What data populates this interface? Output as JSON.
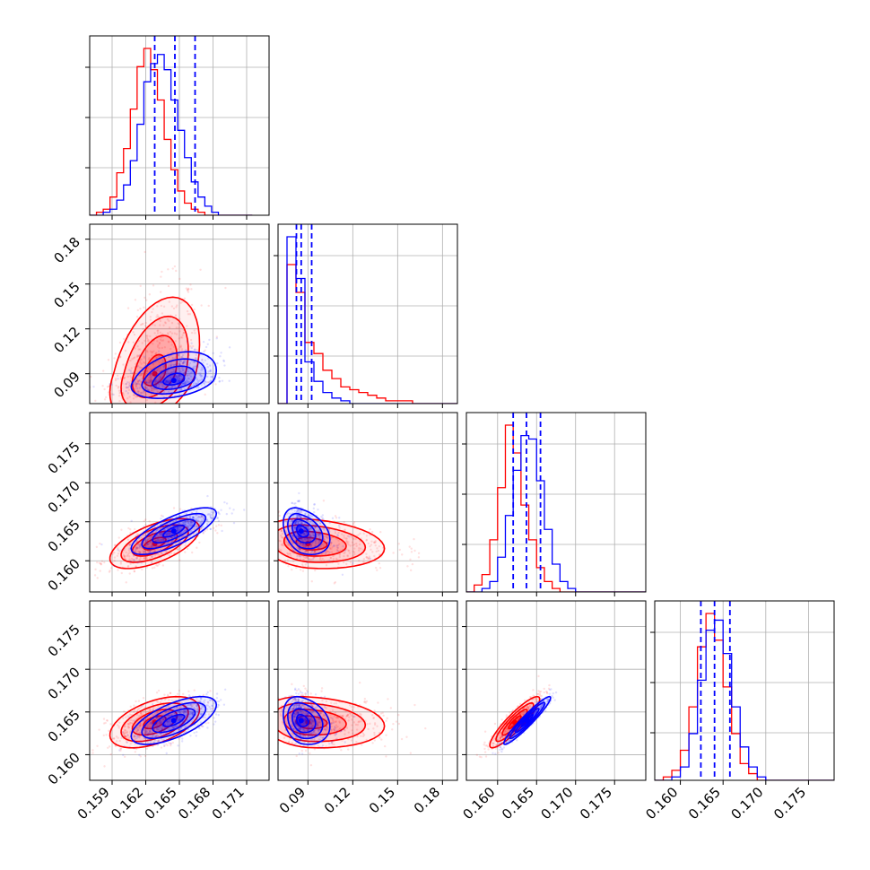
{
  "chart_data": {
    "type": "corner",
    "grid": true,
    "colors": {
      "red": "#ff0000",
      "blue": "#0000ff"
    },
    "series": [
      {
        "color": "#0000ff",
        "mean": [
          0.1645,
          0.0855,
          0.1638,
          0.164
        ],
        "sd": [
          0.0019,
          0.006,
          0.0015,
          0.0014
        ],
        "corr": [
          [
            1,
            0.35,
            0.75,
            0.65
          ],
          [
            0.35,
            1,
            -0.35,
            -0.25
          ],
          [
            0.75,
            -0.35,
            1,
            0.95
          ],
          [
            0.65,
            -0.25,
            0.95,
            1
          ]
        ]
      },
      {
        "color": "#ff0000",
        "mean": [
          0.1628,
          0.09,
          0.1622,
          0.1638
        ],
        "sd": [
          0.002,
          0.016,
          0.0016,
          0.0015
        ],
        "corr": [
          [
            1,
            0.4,
            0.6,
            0.5
          ],
          [
            0.4,
            1,
            -0.2,
            -0.15
          ],
          [
            0.6,
            -0.2,
            1,
            0.9
          ],
          [
            0.5,
            -0.15,
            0.9,
            1
          ]
        ]
      }
    ],
    "quantile_lines": {
      "color": "#0000ff",
      "p0": [
        0.1628,
        0.0823,
        0.162,
        0.1624
      ],
      "p1": [
        0.1646,
        0.0855,
        0.1637,
        0.164
      ],
      "p2": [
        0.1664,
        0.0925,
        0.1655,
        0.1658
      ]
    },
    "hist1d": [
      {
        "edges_lo": 0.157,
        "edges_hi": 0.1715,
        "red": [
          0,
          1,
          2,
          6,
          14,
          22,
          35,
          49,
          55,
          48,
          38,
          25,
          15,
          8,
          4,
          2,
          1,
          0,
          0,
          0,
          0,
          0,
          0,
          0
        ],
        "blue": [
          0,
          0,
          1,
          2,
          5,
          10,
          18,
          30,
          44,
          50,
          53,
          48,
          38,
          28,
          19,
          11,
          6,
          3,
          1,
          0,
          0,
          0,
          0,
          0
        ]
      },
      {
        "edges_lo": 0.07,
        "edges_hi": 0.19,
        "red": [
          0,
          50,
          40,
          22,
          18,
          12,
          9,
          6,
          5,
          4,
          3,
          2,
          1,
          1,
          1,
          0,
          0,
          0,
          0,
          0
        ],
        "blue": [
          0,
          60,
          45,
          15,
          8,
          4,
          2,
          1,
          0,
          0,
          0,
          0,
          0,
          0,
          0,
          0,
          0,
          0,
          0,
          0
        ]
      },
      {
        "edges_lo": 0.156,
        "edges_hi": 0.179,
        "red": [
          0,
          2,
          5,
          15,
          30,
          48,
          40,
          25,
          15,
          7,
          3,
          1,
          0,
          0,
          0,
          0,
          0,
          0,
          0,
          0,
          0,
          0,
          0
        ],
        "blue": [
          0,
          0,
          1,
          3,
          10,
          22,
          35,
          45,
          44,
          32,
          18,
          8,
          3,
          1,
          0,
          0,
          0,
          0,
          0,
          0,
          0,
          0,
          0
        ]
      },
      {
        "edges_lo": 0.157,
        "edges_hi": 0.178,
        "red": [
          0,
          1,
          3,
          9,
          22,
          40,
          50,
          42,
          28,
          14,
          5,
          2,
          0,
          0,
          0,
          0,
          0,
          0,
          0,
          0,
          0
        ],
        "blue": [
          0,
          0,
          1,
          4,
          14,
          30,
          45,
          48,
          38,
          22,
          10,
          4,
          1,
          0,
          0,
          0,
          0,
          0,
          0,
          0,
          0
        ]
      }
    ],
    "axis_ranges": [
      [
        0.157,
        0.173
      ],
      [
        0.07,
        0.19
      ],
      [
        0.156,
        0.179
      ],
      [
        0.157,
        0.178
      ]
    ],
    "ticks": [
      [
        0.159,
        0.162,
        0.165,
        0.168,
        0.171
      ],
      [
        0.09,
        0.12,
        0.15,
        0.18
      ],
      [
        0.16,
        0.165,
        0.17,
        0.175
      ],
      [
        0.16,
        0.165,
        0.17,
        0.175
      ]
    ],
    "tick_labels": [
      [
        "0.159",
        "0.162",
        "0.165",
        "0.168",
        "0.171"
      ],
      [
        "0.09",
        "0.12",
        "0.15",
        "0.18"
      ],
      [
        "0.160",
        "0.165",
        "0.170",
        "0.175"
      ],
      [
        "0.160",
        "0.165",
        "0.170",
        "0.175"
      ]
    ],
    "title": "",
    "axis_labels": [
      "",
      "",
      "",
      ""
    ]
  }
}
